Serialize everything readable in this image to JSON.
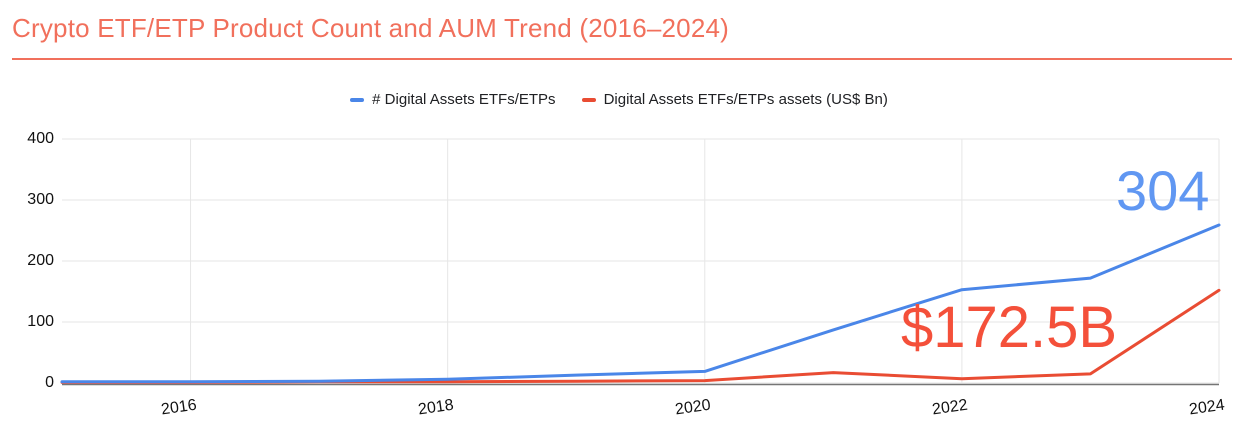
{
  "title": "Crypto ETF/ETP Product Count and AUM Trend (2016–2024)",
  "annotations": {
    "count": "304",
    "aum": "$172.5B"
  },
  "legend": [
    {
      "label": "# Digital Assets ETFs/ETPs",
      "color": "#4a86e8"
    },
    {
      "label": "Digital Assets ETFs/ETPs assets (US$ Bn)",
      "color": "#e94c33"
    }
  ],
  "colors": {
    "title": "#f1705c",
    "underline": "#f1705c",
    "grid": "#e6e6e6",
    "axis_line": "#757575",
    "tick_text": "#111111",
    "count_annotation": "#6097f2",
    "aum_annotation": "#f4503a",
    "background": "#ffffff"
  },
  "chart_data": {
    "type": "line",
    "title": "Crypto ETF/ETP Product Count and AUM Trend (2016–2024)",
    "x": [
      2015,
      2016,
      2017,
      2018,
      2019,
      2020,
      2021,
      2022,
      2023,
      2024
    ],
    "series": [
      {
        "name": "# Digital Assets ETFs/ETPs",
        "color": "#4a86e8",
        "values": [
          2,
          2,
          3,
          6,
          13,
          19,
          87,
          153,
          172,
          259
        ]
      },
      {
        "name": "Digital Assets ETFs/ETPs assets (US$ Bn)",
        "color": "#e94c33",
        "values": [
          1,
          1,
          2,
          2,
          3,
          4,
          17,
          7,
          15,
          152
        ]
      }
    ],
    "xlim": [
      2015,
      2024
    ],
    "ylim": [
      0,
      400
    ],
    "xticks": [
      2016,
      2018,
      2020,
      2022,
      2024
    ],
    "yticks": [
      0,
      100,
      200,
      300,
      400
    ],
    "grid": true,
    "legend_position": "top",
    "annotations": [
      {
        "text": "304",
        "series": "# Digital Assets ETFs/ETPs",
        "color": "#6097f2"
      },
      {
        "text": "$172.5B",
        "series": "Digital Assets ETFs/ETPs assets (US$ Bn)",
        "color": "#f4503a"
      }
    ]
  }
}
